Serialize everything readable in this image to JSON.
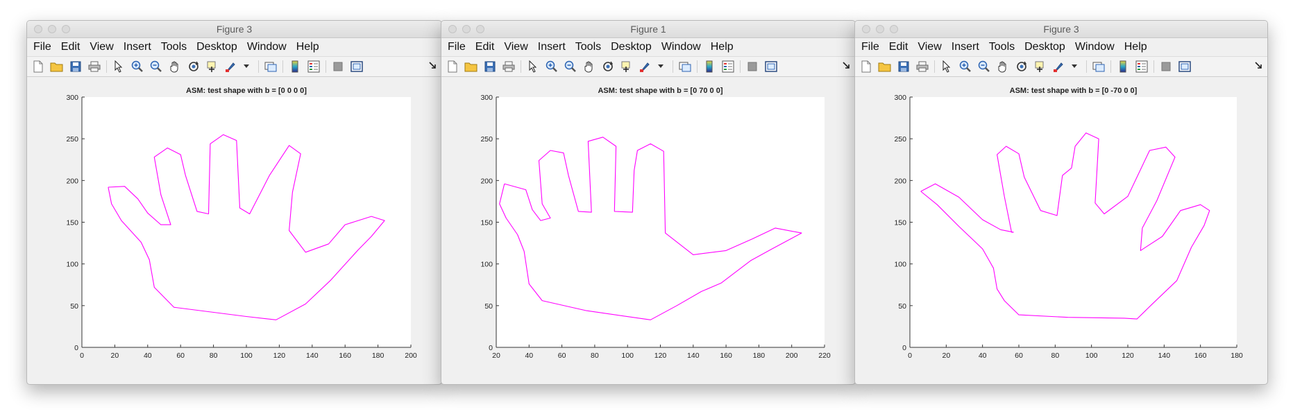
{
  "menu_items": [
    "File",
    "Edit",
    "View",
    "Insert",
    "Tools",
    "Desktop",
    "Window",
    "Help"
  ],
  "colors": {
    "curve": "#ff00ff",
    "window_bg": "#f0f0f0",
    "axes_bg": "#ffffff"
  },
  "toolbar_icons": [
    "new-figure-icon",
    "open-file-icon",
    "save-icon",
    "print-icon",
    "pointer-icon",
    "zoom-in-icon",
    "zoom-out-icon",
    "pan-hand-icon",
    "rotate-3d-icon",
    "data-cursor-icon",
    "brush-icon",
    "dropdown-arrow-icon",
    "link-plot-icon",
    "colorbar-icon",
    "legend-icon",
    "hide-plot-tools-icon",
    "show-plot-tools-icon",
    "dock-icon"
  ],
  "windows": [
    {
      "title": "Figure 3",
      "chart_data": {
        "type": "line",
        "title": "ASM: test shape with b = [0  0  0  0]",
        "xlim": [
          0,
          200
        ],
        "ylim": [
          0,
          300
        ],
        "xticks": [
          0,
          20,
          40,
          60,
          80,
          100,
          120,
          140,
          160,
          180,
          200
        ],
        "yticks": [
          0,
          50,
          100,
          150,
          200,
          250,
          300
        ],
        "grid": false,
        "series": [
          {
            "color": "#ff00ff",
            "x": [
              16,
              26,
              34,
              40,
              48,
              54,
              48,
              44,
              52,
              60,
              63,
              70,
              77,
              78,
              86,
              94,
              96,
              102,
              114,
              126,
              133,
              128,
              126,
              136,
              150,
              160,
              176,
              184,
              176,
              168,
              151,
              136,
              118,
              100,
              56,
              44,
              41,
              36,
              24,
              18,
              16
            ],
            "y": [
              192,
              193,
              178,
              161,
              147,
              147,
              183,
              228,
              239,
              231,
              206,
              163,
              160,
              244,
              255,
              248,
              167,
              160,
              206,
              242,
              232,
              186,
              140,
              114,
              124,
              147,
              157,
              152,
              133,
              117,
              80,
              52,
              33,
              37,
              48,
              72,
              105,
              126,
              152,
              172,
              192
            ]
          }
        ]
      }
    },
    {
      "title": "Figure 1",
      "chart_data": {
        "type": "line",
        "title": "ASM: test shape with b = [0  70   0   0]",
        "xlim": [
          20,
          220
        ],
        "ylim": [
          0,
          300
        ],
        "xticks": [
          20,
          40,
          60,
          80,
          100,
          120,
          140,
          160,
          180,
          200,
          220
        ],
        "yticks": [
          0,
          50,
          100,
          150,
          200,
          250,
          300
        ],
        "grid": false,
        "series": [
          {
            "color": "#ff00ff",
            "x": [
              25,
              38,
              42,
              47,
              53,
              48,
              46,
              53,
              61,
              64,
              70,
              78,
              76,
              85,
              93,
              92,
              103,
              104,
              106,
              114,
              122,
              123,
              140,
              160,
              176,
              190,
              206,
              188,
              175,
              157,
              145,
              130,
              114,
              75,
              48,
              40,
              37,
              33,
              26,
              22,
              25
            ],
            "y": [
              196,
              189,
              165,
              152,
              155,
              172,
              224,
              236,
              233,
              206,
              163,
              162,
              247,
              252,
              241,
              163,
              162,
              212,
              236,
              244,
              235,
              137,
              111,
              116,
              130,
              143,
              137,
              118,
              104,
              77,
              67,
              50,
              33,
              44,
              56,
              76,
              115,
              135,
              155,
              172,
              196
            ]
          }
        ]
      }
    },
    {
      "title": "Figure 3",
      "chart_data": {
        "type": "line",
        "title": "ASM: test shape with b = [0 -70   0   0]",
        "xlim": [
          0,
          180
        ],
        "ylim": [
          0,
          300
        ],
        "xticks": [
          0,
          20,
          40,
          60,
          80,
          100,
          120,
          140,
          160,
          180
        ],
        "yticks": [
          0,
          50,
          100,
          150,
          200,
          250,
          300
        ],
        "grid": false,
        "series": [
          {
            "color": "#ff00ff",
            "x": [
              6,
              14,
              27,
              40,
              50,
              57,
              56,
              52,
              48,
              53,
              60,
              63,
              72,
              81,
              84,
              89,
              91,
              97,
              104,
              102,
              107,
              120,
              132,
              141,
              146,
              136,
              128,
              127,
              139,
              149,
              160,
              165,
              162,
              155,
              147,
              134,
              125,
              118,
              87,
              60,
              52,
              48,
              46,
              40,
              27,
              15,
              6
            ],
            "y": [
              187,
              196,
              180,
              153,
              141,
              138,
              138,
              181,
              231,
              241,
              232,
              204,
              164,
              158,
              206,
              215,
              241,
              257,
              250,
              173,
              160,
              181,
              236,
              240,
              228,
              176,
              143,
              116,
              133,
              164,
              171,
              164,
              146,
              120,
              80,
              53,
              34,
              35,
              36,
              39,
              56,
              70,
              95,
              118,
              145,
              171,
              187
            ]
          }
        ]
      }
    }
  ]
}
